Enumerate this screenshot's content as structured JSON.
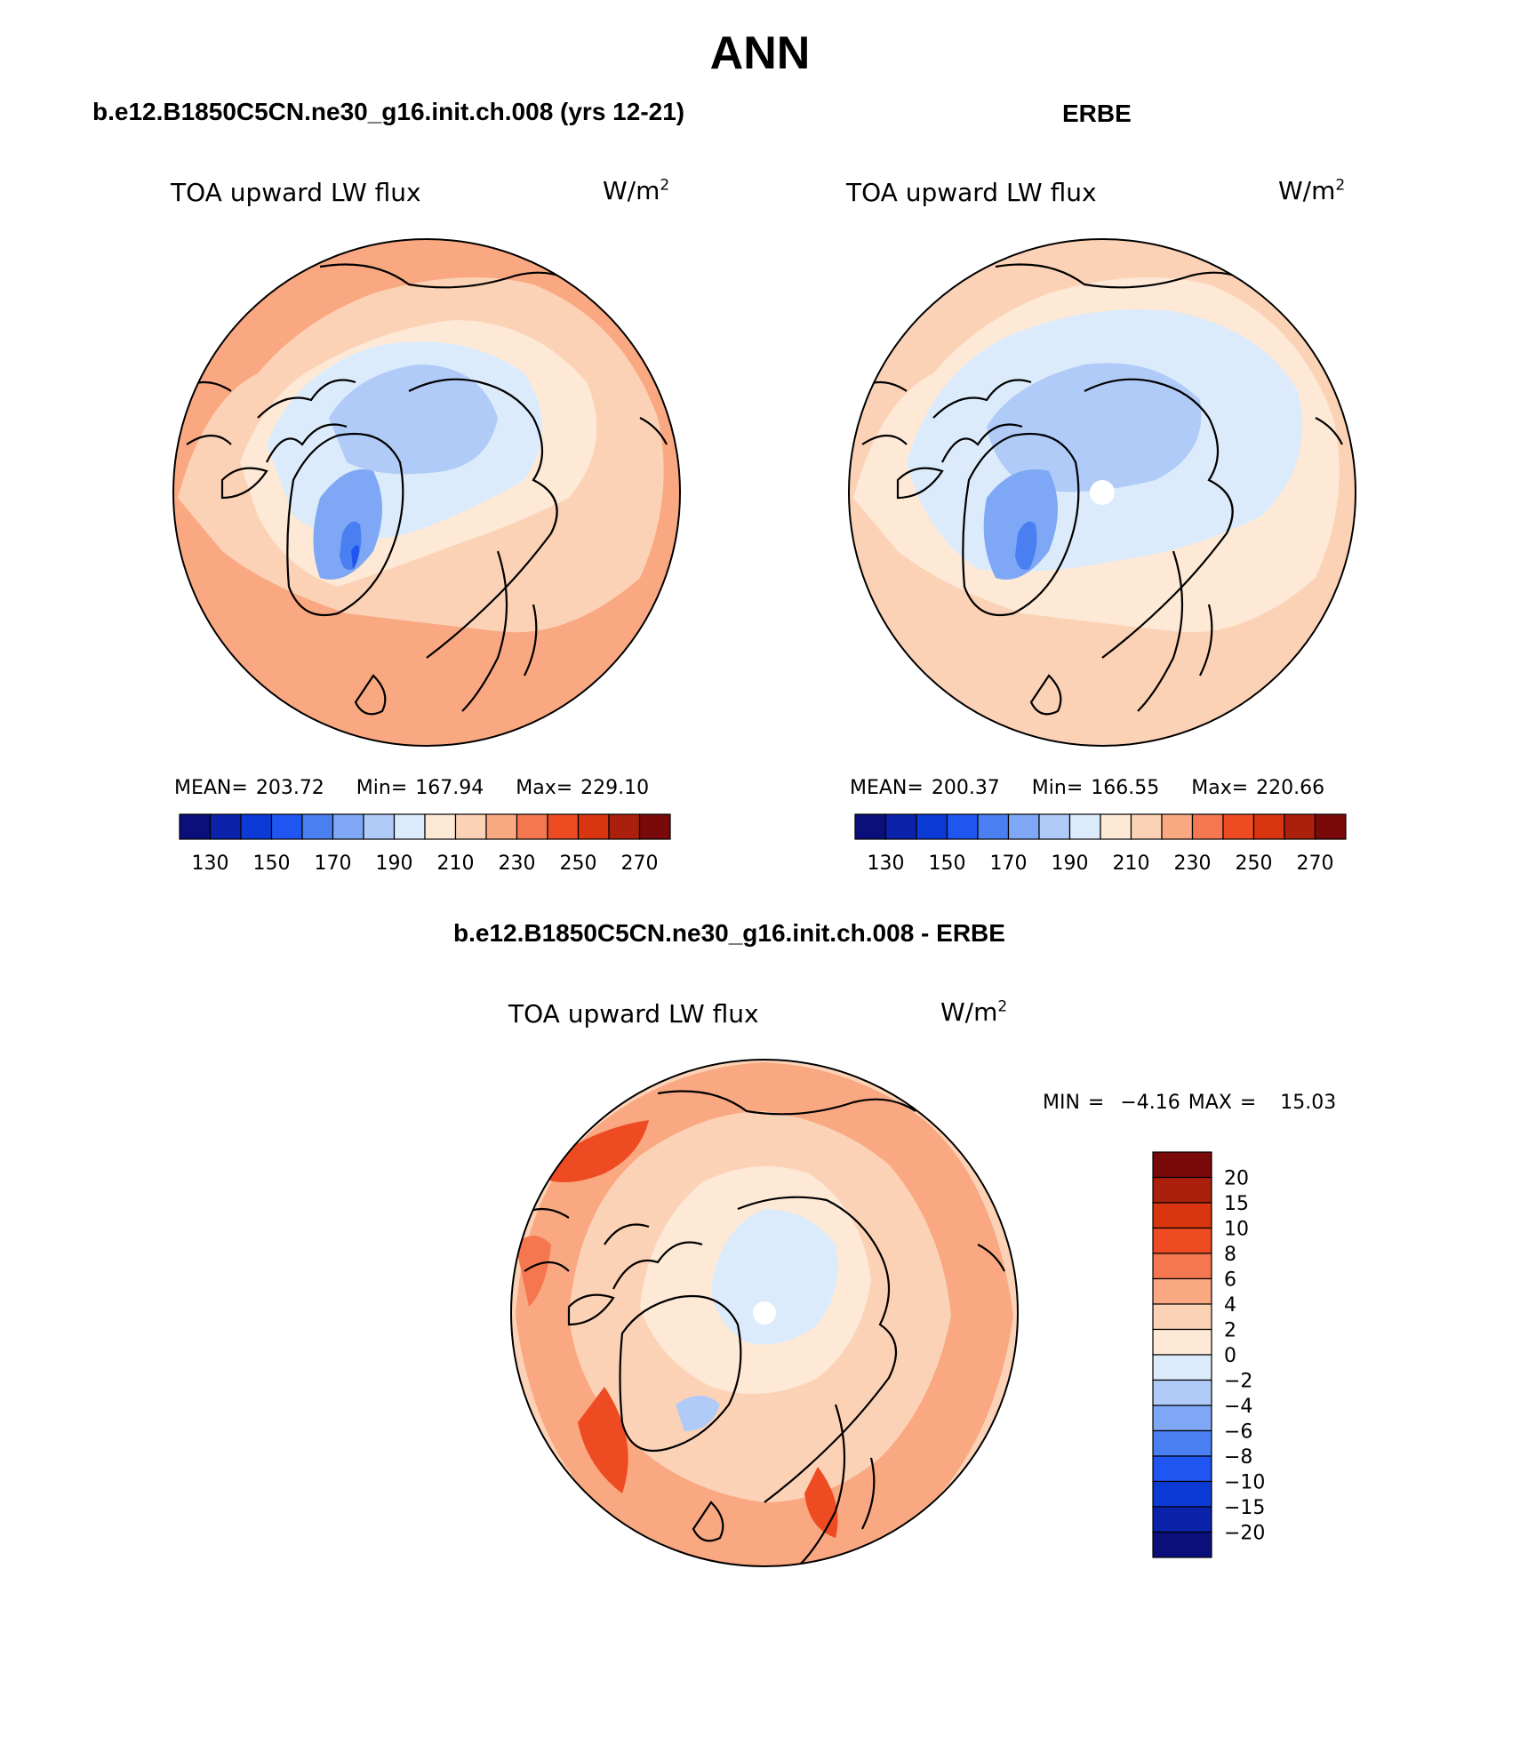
{
  "figure": {
    "title": "ANN",
    "panel_top_left": {
      "case_title": "b.e12.B1850C5CN.ne30_g16.init.ch.008 (yrs 12-21)",
      "variable": "TOA upward LW flux",
      "units_base": "W/m",
      "units_exp": "2",
      "mean_label": "MEAN=",
      "mean": "203.72",
      "min_label": "Min=",
      "min": "167.94",
      "max_label": "Max=",
      "max": "229.10"
    },
    "panel_top_right": {
      "case_title": "ERBE",
      "variable": "TOA upward LW flux",
      "units_base": "W/m",
      "units_exp": "2",
      "mean_label": "MEAN=",
      "mean": "200.37",
      "min_label": "Min=",
      "min": "166.55",
      "max_label": "Max=",
      "max": "220.66"
    },
    "panel_bottom": {
      "case_title": "b.e12.B1850C5CN.ne30_g16.init.ch.008 - ERBE",
      "variable": "TOA upward LW flux",
      "units_base": "W/m",
      "units_exp": "2",
      "min_label": "MIN =",
      "min": "−4.16",
      "max_label": "MAX =",
      "max": "15.03"
    }
  },
  "chart_data": [
    {
      "type": "heatmap",
      "projection": "north-polar-stereographic",
      "region": "arctic",
      "variable": "TOA upward LW flux",
      "units": "W/m2",
      "colorbar": {
        "orientation": "horizontal",
        "ticks": [
          "130",
          "150",
          "170",
          "190",
          "210",
          "230",
          "250",
          "270"
        ],
        "colors": [
          "#0a0f7a",
          "#0a23aa",
          "#0b3ad6",
          "#1f55f0",
          "#4a7ff2",
          "#7ea8f5",
          "#b0cbf8",
          "#dcebfb",
          "#fde9d6",
          "#fcd2b6",
          "#f9a882",
          "#f5774f",
          "#ee4b22",
          "#d93510",
          "#aa200c",
          "#7a0a0a"
        ]
      },
      "stats": {
        "mean": 203.72,
        "min": 167.94,
        "max": 229.1
      }
    },
    {
      "type": "heatmap",
      "projection": "north-polar-stereographic",
      "region": "arctic",
      "variable": "TOA upward LW flux",
      "units": "W/m2",
      "colorbar": {
        "orientation": "horizontal",
        "ticks": [
          "130",
          "150",
          "170",
          "190",
          "210",
          "230",
          "250",
          "270"
        ],
        "colors": [
          "#0a0f7a",
          "#0a23aa",
          "#0b3ad6",
          "#1f55f0",
          "#4a7ff2",
          "#7ea8f5",
          "#b0cbf8",
          "#dcebfb",
          "#fde9d6",
          "#fcd2b6",
          "#f9a882",
          "#f5774f",
          "#ee4b22",
          "#d93510",
          "#aa200c",
          "#7a0a0a"
        ]
      },
      "stats": {
        "mean": 200.37,
        "min": 166.55,
        "max": 220.66
      }
    },
    {
      "type": "heatmap",
      "projection": "north-polar-stereographic",
      "region": "arctic",
      "variable": "TOA upward LW flux",
      "units": "W/m2",
      "colorbar": {
        "orientation": "vertical",
        "ticks": [
          "20",
          "15",
          "10",
          "8",
          "6",
          "4",
          "2",
          "0",
          "−2",
          "−4",
          "−6",
          "−8",
          "−10",
          "−15",
          "−20"
        ],
        "colors": [
          "#7a0a0a",
          "#aa200c",
          "#d93510",
          "#ee4b22",
          "#f5774f",
          "#f9a882",
          "#fcd2b6",
          "#fde9d6",
          "#dcebfb",
          "#b0cbf8",
          "#7ea8f5",
          "#4a7ff2",
          "#1f55f0",
          "#0b3ad6",
          "#0a23aa",
          "#0a0f7a"
        ]
      },
      "stats": {
        "min": -4.16,
        "max": 15.03
      }
    }
  ]
}
